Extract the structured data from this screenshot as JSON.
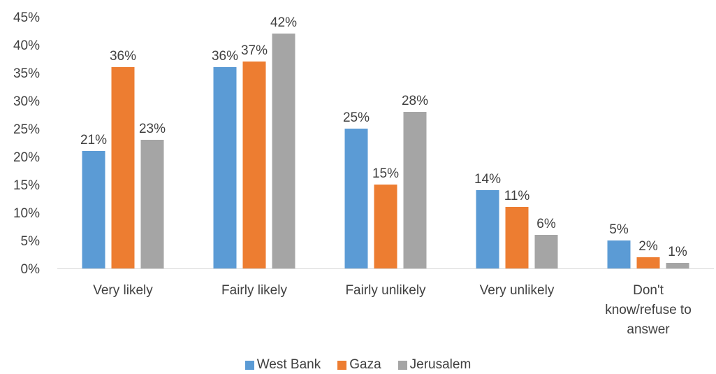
{
  "chart_data": {
    "type": "bar",
    "categories": [
      "Very likely",
      "Fairly likely",
      "Fairly unlikely",
      "Very unlikely",
      "Don't know/refuse to answer"
    ],
    "category_lines": [
      [
        "Very likely"
      ],
      [
        "Fairly likely"
      ],
      [
        "Fairly unlikely"
      ],
      [
        "Very unlikely"
      ],
      [
        "Don't",
        "know/refuse to",
        "answer"
      ]
    ],
    "series": [
      {
        "name": "West Bank",
        "color": "#5b9bd5",
        "values": [
          21,
          36,
          25,
          14,
          5
        ],
        "labels": [
          "21%",
          "36%",
          "25%",
          "14%",
          "5%"
        ]
      },
      {
        "name": "Gaza",
        "color": "#ed7d31",
        "values": [
          36,
          37,
          15,
          11,
          2
        ],
        "labels": [
          "36%",
          "37%",
          "15%",
          "11%",
          "2%"
        ]
      },
      {
        "name": "Jerusalem",
        "color": "#a5a5a5",
        "values": [
          23,
          42,
          28,
          6,
          1
        ],
        "labels": [
          "23%",
          "42%",
          "28%",
          "6%",
          "1%"
        ]
      }
    ],
    "ylim": [
      0,
      45
    ],
    "y_ticks": [
      0,
      5,
      10,
      15,
      20,
      25,
      30,
      35,
      40,
      45
    ],
    "y_tick_labels": [
      "0%",
      "5%",
      "10%",
      "15%",
      "20%",
      "25%",
      "30%",
      "35%",
      "40%",
      "45%"
    ],
    "grid": false,
    "legend_position": "bottom"
  }
}
